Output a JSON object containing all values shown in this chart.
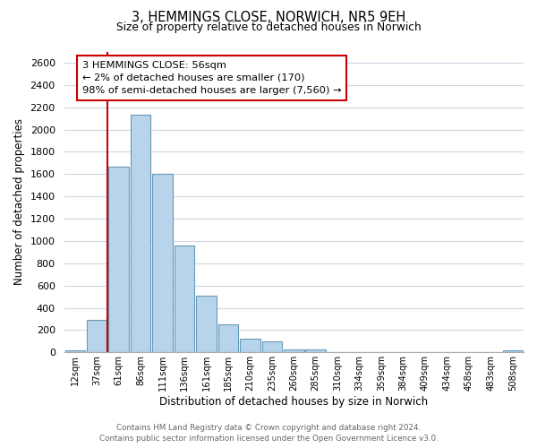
{
  "title": "3, HEMMINGS CLOSE, NORWICH, NR5 9EH",
  "subtitle": "Size of property relative to detached houses in Norwich",
  "xlabel": "Distribution of detached houses by size in Norwich",
  "ylabel": "Number of detached properties",
  "bar_color": "#b8d4ea",
  "bar_edge_color": "#6699bb",
  "vline_color": "#cc0000",
  "annotation_title": "3 HEMMINGS CLOSE: 56sqm",
  "annotation_line1": "← 2% of detached houses are smaller (170)",
  "annotation_line2": "98% of semi-detached houses are larger (7,560) →",
  "annotation_box_color": "#ffffff",
  "annotation_box_edge": "#cc0000",
  "categories": [
    "12sqm",
    "37sqm",
    "61sqm",
    "86sqm",
    "111sqm",
    "136sqm",
    "161sqm",
    "185sqm",
    "210sqm",
    "235sqm",
    "260sqm",
    "285sqm",
    "310sqm",
    "334sqm",
    "359sqm",
    "384sqm",
    "409sqm",
    "434sqm",
    "458sqm",
    "483sqm",
    "508sqm"
  ],
  "values": [
    20,
    290,
    1670,
    2130,
    1600,
    960,
    505,
    250,
    120,
    95,
    30,
    28,
    5,
    5,
    5,
    3,
    3,
    3,
    3,
    3,
    20
  ],
  "ylim": [
    0,
    2700
  ],
  "yticks": [
    0,
    200,
    400,
    600,
    800,
    1000,
    1200,
    1400,
    1600,
    1800,
    2000,
    2200,
    2400,
    2600
  ],
  "footer_line1": "Contains HM Land Registry data © Crown copyright and database right 2024.",
  "footer_line2": "Contains public sector information licensed under the Open Government Licence v3.0.",
  "background_color": "#ffffff",
  "grid_color": "#ccd8e4"
}
